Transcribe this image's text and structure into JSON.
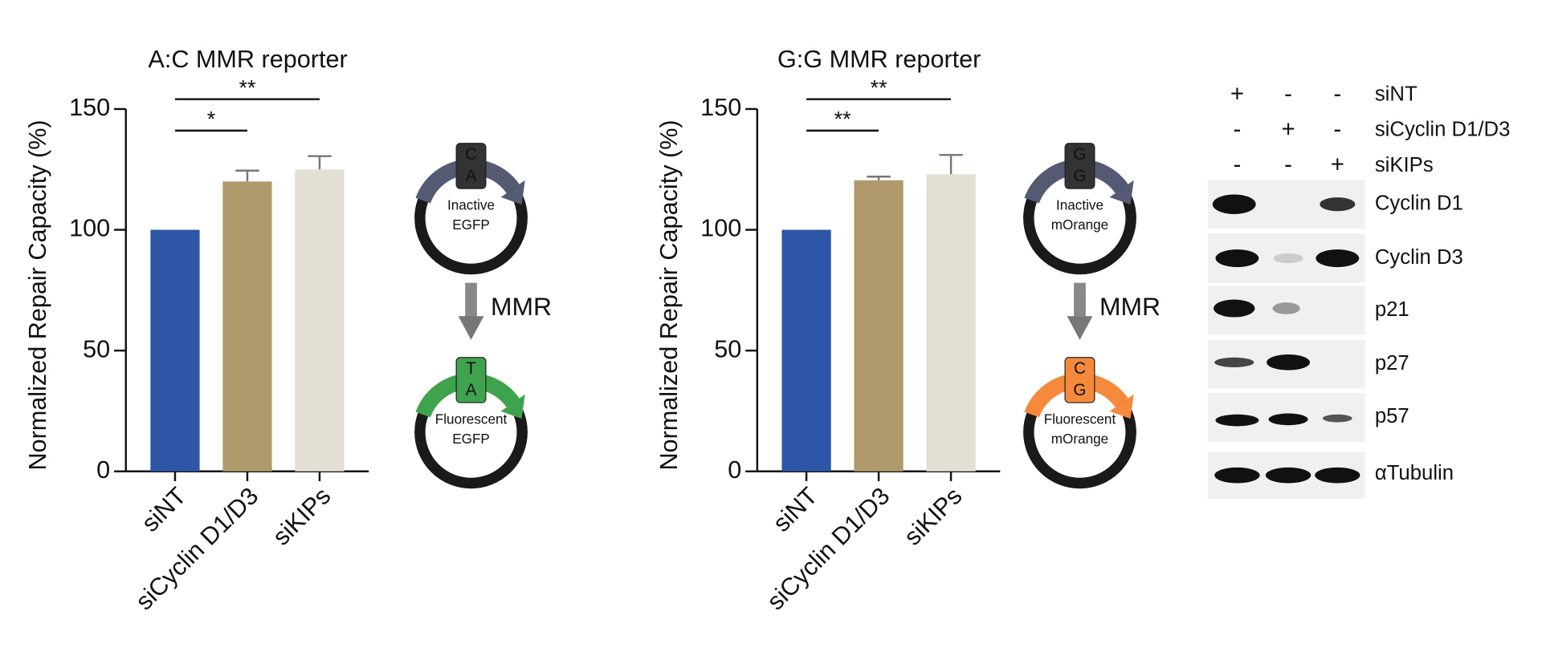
{
  "chart_data": [
    {
      "type": "bar",
      "title": "A:C MMR reporter",
      "y_label": "Normalized Repair Capacity (%)",
      "categories": [
        "siNT",
        "siCyclin D1/D3",
        "siKIPs"
      ],
      "values": [
        100,
        120,
        125
      ],
      "errors": [
        0,
        4.5,
        5.5
      ],
      "colors": [
        "#2e56a6",
        "#b09a6c",
        "#e3dfd2"
      ],
      "ylim": [
        0,
        150
      ],
      "yticks": [
        0,
        50,
        100,
        150
      ],
      "significance": [
        {
          "label": "**",
          "categories": [
            0,
            2
          ]
        },
        {
          "label": "*",
          "categories": [
            0,
            1
          ]
        }
      ]
    },
    {
      "type": "bar",
      "title": "G:G MMR reporter",
      "y_label": "Normalized Repair Capacity (%)",
      "categories": [
        "siNT",
        "siCyclin D1/D3",
        "siKIPs"
      ],
      "values": [
        100,
        120.5,
        123
      ],
      "errors": [
        0,
        1.5,
        8
      ],
      "colors": [
        "#2e56a6",
        "#b09a6c",
        "#e3dfd2"
      ],
      "ylim": [
        0,
        150
      ],
      "yticks": [
        0,
        50,
        100,
        150
      ],
      "significance": [
        {
          "label": "**",
          "categories": [
            0,
            2
          ]
        },
        {
          "label": "**",
          "categories": [
            0,
            1
          ]
        }
      ]
    }
  ],
  "diagrams": [
    {
      "top": {
        "letters": [
          "C",
          "A"
        ],
        "label": [
          "Inactive",
          "EGFP"
        ],
        "color": "#555a73",
        "box": "#333333"
      },
      "arrow": "MMR",
      "bottom": {
        "letters": [
          "T",
          "A"
        ],
        "label": [
          "Fluorescent",
          "EGFP"
        ],
        "color": "#3fa34d",
        "box": "#3fa34d"
      }
    },
    {
      "top": {
        "letters": [
          "G",
          "G"
        ],
        "label": [
          "Inactive",
          "mOrange"
        ],
        "color": "#555a73",
        "box": "#333333"
      },
      "arrow": "MMR",
      "bottom": {
        "letters": [
          "C",
          "G"
        ],
        "label": [
          "Fluorescent",
          "mOrange"
        ],
        "color": "#f58a3d",
        "box": "#f58a3d"
      }
    }
  ],
  "blot": {
    "conditions": [
      {
        "name": "siNT",
        "signs": [
          "+",
          "-",
          "-"
        ]
      },
      {
        "name": "siCyclin D1/D3",
        "signs": [
          "-",
          "+",
          "-"
        ]
      },
      {
        "name": "siKIPs",
        "signs": [
          "-",
          "-",
          "+"
        ]
      }
    ],
    "proteins": [
      "Cyclin D1",
      "Cyclin D3",
      "p21",
      "p27",
      "p57",
      "αTubulin"
    ]
  }
}
